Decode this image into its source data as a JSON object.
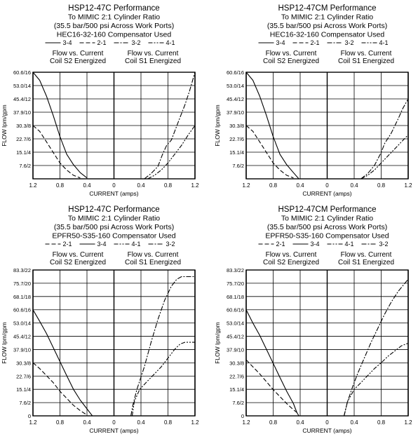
{
  "chart_data": [
    {
      "type": "line",
      "title": [
        "HSP12-47C Performance",
        "To MIMIC 2:1 Cylinder Ratio",
        "(35.5 bar/500 psi Across Work Ports)",
        "HEC16-32-160 Compensator Used"
      ],
      "ylabel": "FLOW lpm/gpm",
      "xlabel": "CURRENT (amps)",
      "legend": [
        "3-4",
        "2-1",
        "3-2",
        "4-1"
      ],
      "left_label": [
        "Flow vs. Current",
        "Coil S2 Energized"
      ],
      "right_label": [
        "Flow vs. Current",
        "Coil S1 Energized"
      ],
      "ytick_labels": [
        "",
        "7.6/2",
        "15.1/4",
        "22.7/6",
        "30.3/8",
        "37.9/10",
        "45.4/12",
        "53.0/14",
        "60.6/16"
      ],
      "ylim": [
        0,
        60.6
      ],
      "xtick_labels": [
        "1.2",
        "0.8",
        "0.4",
        "0",
        "0.4",
        "0.8",
        "1.2"
      ],
      "grid": true,
      "series": [
        {
          "name": "3-4",
          "side": "S2",
          "values": [
            [
              1.2,
              60.6
            ],
            [
              1.1,
              56
            ],
            [
              1.0,
              47
            ],
            [
              0.9,
              36
            ],
            [
              0.8,
              24
            ],
            [
              0.7,
              14
            ],
            [
              0.6,
              8
            ],
            [
              0.5,
              3.5
            ],
            [
              0.4,
              0.5
            ]
          ]
        },
        {
          "name": "2-1",
          "side": "S2",
          "values": [
            [
              1.2,
              30.3
            ],
            [
              1.1,
              27
            ],
            [
              1.0,
              21
            ],
            [
              0.9,
              15
            ],
            [
              0.8,
              9
            ],
            [
              0.7,
              5
            ],
            [
              0.6,
              2
            ],
            [
              0.5,
              0.5
            ]
          ]
        },
        {
          "name": "3-2",
          "side": "S1",
          "values": [
            [
              0.45,
              0
            ],
            [
              0.55,
              3
            ],
            [
              0.65,
              7
            ],
            [
              0.72,
              14
            ],
            [
              0.78,
              19
            ],
            [
              0.85,
              22
            ],
            [
              0.95,
              32
            ],
            [
              1.05,
              42
            ],
            [
              1.12,
              50
            ],
            [
              1.2,
              60.6
            ]
          ]
        },
        {
          "name": "4-1",
          "side": "S1",
          "values": [
            [
              0.5,
              0
            ],
            [
              0.6,
              2
            ],
            [
              0.7,
              5
            ],
            [
              0.8,
              9
            ],
            [
              0.9,
              14
            ],
            [
              1.0,
              19
            ],
            [
              1.1,
              25
            ],
            [
              1.2,
              30.3
            ]
          ]
        }
      ]
    },
    {
      "type": "line",
      "title": [
        "HSP12-47CM Performance",
        "To MIMIC 2:1 Cylinder Ratio",
        "(35.5 bar/500 psi Across Work Ports)",
        "HEC16-32-160 Compensator Used"
      ],
      "ylabel": "FLOW lpm/gpm",
      "xlabel": "CURRENT (amps)",
      "legend": [
        "3-4",
        "2-1",
        "3-2",
        "4-1"
      ],
      "left_label": [
        "Flow vs. Current",
        "Coil S2 Energized"
      ],
      "right_label": [
        "Flow vs. Current",
        "Coil S1 Energized"
      ],
      "ytick_labels": [
        "",
        "7.6/2",
        "15.1/4",
        "22.7/6",
        "30.3/8",
        "37.9/10",
        "45.4/12",
        "53.0/14",
        "60.6/16"
      ],
      "ylim": [
        0,
        60.6
      ],
      "xtick_labels": [
        "1.2",
        "0.8",
        "0.4",
        "0",
        "0.4",
        "0.8",
        "1.2"
      ],
      "grid": true,
      "series": [
        {
          "name": "3-4",
          "side": "S2",
          "values": [
            [
              1.2,
              60.6
            ],
            [
              1.1,
              56
            ],
            [
              1.0,
              47
            ],
            [
              0.9,
              36
            ],
            [
              0.8,
              24
            ],
            [
              0.7,
              14
            ],
            [
              0.6,
              8
            ],
            [
              0.5,
              3.5
            ],
            [
              0.42,
              0
            ]
          ]
        },
        {
          "name": "2-1",
          "side": "S2",
          "values": [
            [
              1.2,
              30.3
            ],
            [
              1.1,
              27
            ],
            [
              1.0,
              21
            ],
            [
              0.9,
              15
            ],
            [
              0.8,
              9
            ],
            [
              0.7,
              5
            ],
            [
              0.6,
              2
            ],
            [
              0.5,
              0.5
            ]
          ]
        },
        {
          "name": "3-2",
          "side": "S1",
          "values": [
            [
              0.5,
              0
            ],
            [
              0.6,
              3
            ],
            [
              0.7,
              7.6
            ],
            [
              0.8,
              15
            ],
            [
              0.85,
              20
            ],
            [
              0.95,
              26
            ],
            [
              1.05,
              34
            ],
            [
              1.12,
              40
            ],
            [
              1.2,
              45.4
            ]
          ]
        },
        {
          "name": "4-1",
          "side": "S1",
          "values": [
            [
              0.5,
              0
            ],
            [
              0.6,
              2
            ],
            [
              0.7,
              5
            ],
            [
              0.8,
              9
            ],
            [
              0.9,
              13
            ],
            [
              1.0,
              17
            ],
            [
              1.1,
              21
            ],
            [
              1.2,
              25
            ]
          ]
        }
      ]
    },
    {
      "type": "line",
      "title": [
        "HSP12-47C Performance",
        "To MIMIC 2:1 Cylinder Ratio",
        "(35.5 bar/500 psi Across Work Ports)",
        "EPFR50-S35-160 Compensator Used"
      ],
      "ylabel": "FLOW lpm/gpm",
      "xlabel": "CURRENT (amps)",
      "legend": [
        "2-1",
        "3-4",
        "4-1",
        "3-2"
      ],
      "left_label": [
        "Flow vs. Current",
        "Coil S2 Energized"
      ],
      "right_label": [
        "Flow vs. Current",
        "Coil S1 Energized"
      ],
      "ytick_labels": [
        "0",
        "7.6/2",
        "15.1/4",
        "22.7/6",
        "30.3/8",
        "37.9/10",
        "45.4/12",
        "53.0/14",
        "60.6/16",
        "68.1/18",
        "75.7/20",
        "83.3/22"
      ],
      "ylim": [
        0,
        83.3
      ],
      "xtick_labels": [
        "1.2",
        "0.8",
        "0.4",
        "0",
        "0.4",
        "0.8",
        "1.2"
      ],
      "grid": true,
      "series": [
        {
          "name": "2-1",
          "side": "S2",
          "values": [
            [
              1.2,
              30.3
            ],
            [
              1.1,
              27
            ],
            [
              1.0,
              23
            ],
            [
              0.9,
              19
            ],
            [
              0.8,
              14
            ],
            [
              0.7,
              10
            ],
            [
              0.6,
              6
            ],
            [
              0.5,
              3
            ],
            [
              0.4,
              0.5
            ]
          ]
        },
        {
          "name": "3-4",
          "side": "S2",
          "values": [
            [
              1.2,
              60.6
            ],
            [
              1.1,
              54
            ],
            [
              1.0,
              47
            ],
            [
              0.9,
              39
            ],
            [
              0.8,
              31
            ],
            [
              0.7,
              23
            ],
            [
              0.6,
              15.1
            ],
            [
              0.5,
              9
            ],
            [
              0.4,
              4
            ],
            [
              0.32,
              0
            ]
          ]
        },
        {
          "name": "4-1",
          "side": "S1",
          "values": [
            [
              0.27,
              0
            ],
            [
              0.3,
              8
            ],
            [
              0.38,
              15.1
            ],
            [
              0.5,
              20
            ],
            [
              0.6,
              24
            ],
            [
              0.7,
              28
            ],
            [
              0.8,
              33
            ],
            [
              0.9,
              38
            ],
            [
              0.98,
              41
            ],
            [
              1.05,
              42
            ],
            [
              1.2,
              42
            ]
          ]
        },
        {
          "name": "3-2",
          "side": "S1",
          "values": [
            [
              0.25,
              0
            ],
            [
              0.28,
              6
            ],
            [
              0.34,
              15.1
            ],
            [
              0.45,
              28
            ],
            [
              0.55,
              42
            ],
            [
              0.65,
              55
            ],
            [
              0.75,
              66
            ],
            [
              0.85,
              74
            ],
            [
              0.93,
              78
            ],
            [
              1.0,
              79.5
            ],
            [
              1.2,
              79.5
            ]
          ]
        }
      ]
    },
    {
      "type": "line",
      "title": [
        "HSP12-47CM Performance",
        "To MIMIC 2:1 Cylinder Ratio",
        "(35.5 bar/500 psi Across Work Ports)",
        "EPFR50-S35-160 Compensator Used"
      ],
      "ylabel": "FLOW lpm/gpm",
      "xlabel": "CURRENT (amps)",
      "legend": [
        "2-1",
        "3-4",
        "4-1",
        "3-2"
      ],
      "left_label": [
        "Flow vs. Current",
        "Coil S2 Energized"
      ],
      "right_label": [
        "Flow vs. Current",
        "Coil S1 Energized"
      ],
      "ytick_labels": [
        "0",
        "7.6/2",
        "15.1/4",
        "22.7/6",
        "30.3/8",
        "37.9/10",
        "45.4/12",
        "53.0/14",
        "60.6/16",
        "68.1/18",
        "75.7/20",
        "83.3/22"
      ],
      "ylim": [
        0,
        83.3
      ],
      "xtick_labels": [
        "1.2",
        "0.8",
        "0.4",
        "0",
        "0.4",
        "0.8",
        "1.2"
      ],
      "grid": true,
      "series": [
        {
          "name": "2-1",
          "side": "S2",
          "values": [
            [
              1.2,
              32
            ],
            [
              1.1,
              28
            ],
            [
              1.0,
              24
            ],
            [
              0.9,
              19.5
            ],
            [
              0.8,
              15
            ],
            [
              0.7,
              11
            ],
            [
              0.6,
              7
            ],
            [
              0.5,
              3.5
            ],
            [
              0.42,
              1
            ]
          ]
        },
        {
          "name": "3-4",
          "side": "S2",
          "values": [
            [
              1.2,
              60.6
            ],
            [
              1.1,
              53
            ],
            [
              1.0,
              46
            ],
            [
              0.9,
              38
            ],
            [
              0.8,
              30
            ],
            [
              0.7,
              22
            ],
            [
              0.6,
              14
            ],
            [
              0.5,
              7
            ],
            [
              0.45,
              2
            ],
            [
              0.42,
              0
            ]
          ]
        },
        {
          "name": "4-1",
          "side": "S1",
          "values": [
            [
              0.25,
              0
            ],
            [
              0.3,
              8
            ],
            [
              0.4,
              15.1
            ],
            [
              0.5,
              19
            ],
            [
              0.6,
              23
            ],
            [
              0.7,
              27
            ],
            [
              0.8,
              30.3
            ],
            [
              0.9,
              34
            ],
            [
              1.0,
              37
            ],
            [
              1.1,
              40
            ],
            [
              1.2,
              41.5
            ]
          ]
        },
        {
          "name": "3-2",
          "side": "S1",
          "values": [
            [
              0.25,
              0
            ],
            [
              0.3,
              8
            ],
            [
              0.38,
              17
            ],
            [
              0.45,
              24
            ],
            [
              0.55,
              33
            ],
            [
              0.65,
              42
            ],
            [
              0.75,
              50
            ],
            [
              0.85,
              58
            ],
            [
              0.95,
              65
            ],
            [
              1.05,
              71
            ],
            [
              1.15,
              75.7
            ],
            [
              1.2,
              78
            ]
          ]
        }
      ]
    }
  ]
}
